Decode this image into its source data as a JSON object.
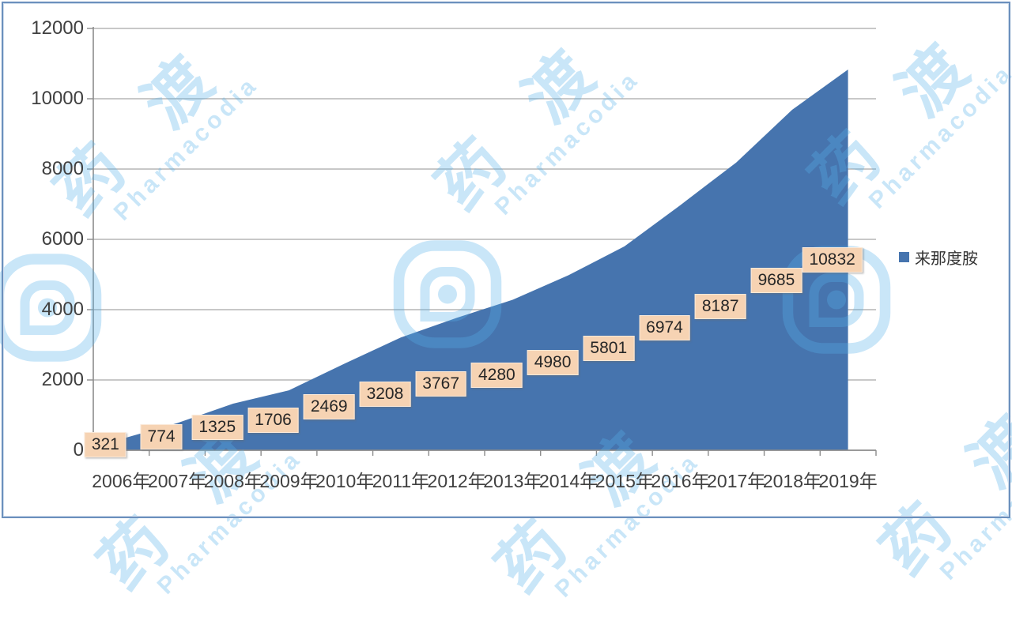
{
  "chart_data": {
    "type": "area",
    "title": "",
    "categories": [
      "2006年",
      "2007年",
      "2008年",
      "2009年",
      "2010年",
      "2011年",
      "2012年",
      "2013年",
      "2014年",
      "2015年",
      "2016年",
      "2017年",
      "2018年",
      "2019年"
    ],
    "series": [
      {
        "name": "来那度胺",
        "values": [
          321,
          774,
          1325,
          1706,
          2469,
          3208,
          3767,
          4280,
          4980,
          5801,
          6974,
          8187,
          9685,
          10832
        ]
      }
    ],
    "data_labels_shown": true,
    "ylim": [
      0,
      12000
    ],
    "yticks": [
      0,
      2000,
      4000,
      6000,
      8000,
      10000,
      12000
    ],
    "grid": "horizontal",
    "legend_position": "right"
  },
  "legend": {
    "label": "来那度胺"
  },
  "watermark": {
    "cjk": "药 渡",
    "latin": "Pharmacodia",
    "color": "rgba(88,178,233,0.32)"
  },
  "colors": {
    "area": "#4674ae",
    "label_box": "#f6d3b3",
    "label_text": "#262626",
    "gridline": "#a6a6a6",
    "axis": "#8c8c8c",
    "axis_text": "#404040",
    "frame": "#6b90bd"
  }
}
